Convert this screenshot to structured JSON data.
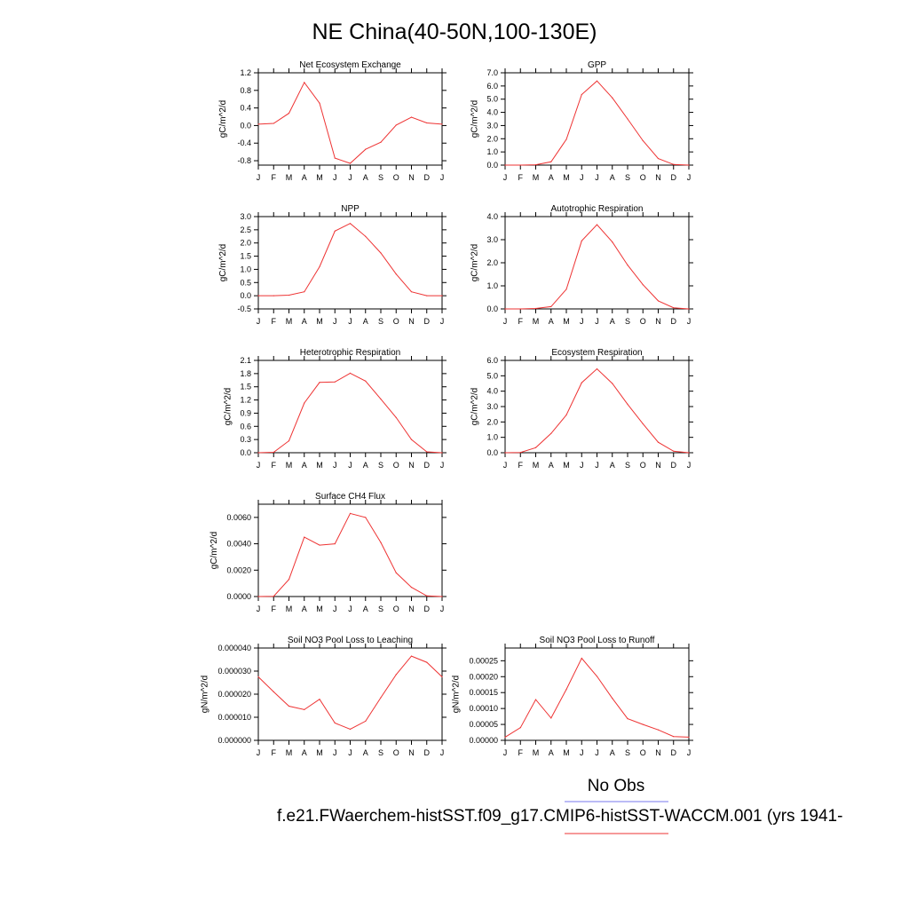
{
  "title": "NE China(40-50N,100-130E)",
  "months": [
    "J",
    "F",
    "M",
    "A",
    "M",
    "J",
    "J",
    "A",
    "S",
    "O",
    "N",
    "D",
    "J"
  ],
  "legend": {
    "obs_label": "No Obs",
    "obs_color": "#7777ee",
    "model_label": "f.e21.FWaerchem-histSST.f09_g17.CMIP6-histSST-WACCM.001 (yrs 1941-",
    "model_color": "#ee3333"
  },
  "chart_data": [
    {
      "type": "line",
      "title": "Net Ecosystem Exchange",
      "ylabel": "gC/m^2/d",
      "ylim": [
        -0.9,
        1.2
      ],
      "yticks": [
        "1.2",
        "0.8",
        "0.4",
        "0.0",
        "-0.4",
        "-0.8"
      ],
      "x": [
        "J",
        "F",
        "M",
        "A",
        "M",
        "J",
        "J",
        "A",
        "S",
        "O",
        "N",
        "D",
        "J"
      ],
      "series": [
        {
          "values": [
            0.03,
            0.05,
            0.28,
            0.98,
            0.51,
            -0.74,
            -0.86,
            -0.54,
            -0.38,
            0.01,
            0.19,
            0.06,
            0.03
          ]
        }
      ]
    },
    {
      "type": "line",
      "title": "GPP",
      "ylabel": "gC/m^2/d",
      "ylim": [
        0.0,
        7.0
      ],
      "yticks": [
        "7.0",
        "6.0",
        "5.0",
        "4.0",
        "3.0",
        "2.0",
        "1.0",
        "0.0"
      ],
      "x": [
        "J",
        "F",
        "M",
        "A",
        "M",
        "J",
        "J",
        "A",
        "S",
        "O",
        "N",
        "D",
        "J"
      ],
      "series": [
        {
          "values": [
            0.0,
            0.0,
            0.03,
            0.25,
            1.95,
            5.35,
            6.38,
            5.1,
            3.5,
            1.85,
            0.5,
            0.05,
            0.0
          ]
        }
      ]
    },
    {
      "type": "line",
      "title": "NPP",
      "ylabel": "gC/m^2/d",
      "ylim": [
        -0.5,
        3.0
      ],
      "yticks": [
        "3.0",
        "2.5",
        "2.0",
        "1.5",
        "1.0",
        "0.5",
        "0.0",
        "-0.5"
      ],
      "x": [
        "J",
        "F",
        "M",
        "A",
        "M",
        "J",
        "J",
        "A",
        "S",
        "O",
        "N",
        "D",
        "J"
      ],
      "series": [
        {
          "values": [
            0.0,
            0.0,
            0.02,
            0.15,
            1.1,
            2.45,
            2.74,
            2.25,
            1.62,
            0.82,
            0.15,
            0.0,
            0.0
          ]
        }
      ]
    },
    {
      "type": "line",
      "title": "Autotrophic Respiration",
      "ylabel": "gC/m^2/d",
      "ylim": [
        0.0,
        4.0
      ],
      "yticks": [
        "4.0",
        "3.0",
        "2.0",
        "1.0",
        "0.0"
      ],
      "x": [
        "J",
        "F",
        "M",
        "A",
        "M",
        "J",
        "J",
        "A",
        "S",
        "O",
        "N",
        "D",
        "J"
      ],
      "series": [
        {
          "values": [
            0.0,
            0.0,
            0.02,
            0.1,
            0.85,
            2.95,
            3.65,
            2.9,
            1.9,
            1.05,
            0.35,
            0.05,
            0.0
          ]
        }
      ]
    },
    {
      "type": "line",
      "title": "Heterotrophic Respiration",
      "ylabel": "gC/m^2/d",
      "ylim": [
        0.0,
        2.1
      ],
      "yticks": [
        "2.1",
        "1.8",
        "1.5",
        "1.2",
        "0.9",
        "0.6",
        "0.3",
        "0.0"
      ],
      "x": [
        "J",
        "F",
        "M",
        "A",
        "M",
        "J",
        "J",
        "A",
        "S",
        "O",
        "N",
        "D",
        "J"
      ],
      "series": [
        {
          "values": [
            0.0,
            0.01,
            0.27,
            1.13,
            1.6,
            1.61,
            1.81,
            1.63,
            1.22,
            0.8,
            0.3,
            0.02,
            0.0
          ]
        }
      ]
    },
    {
      "type": "line",
      "title": "Ecosystem Respiration",
      "ylabel": "gC/m^2/d",
      "ylim": [
        0.0,
        6.0
      ],
      "yticks": [
        "6.0",
        "5.0",
        "4.0",
        "3.0",
        "2.0",
        "1.0",
        "0.0"
      ],
      "x": [
        "J",
        "F",
        "M",
        "A",
        "M",
        "J",
        "J",
        "A",
        "S",
        "O",
        "N",
        "D",
        "J"
      ],
      "series": [
        {
          "values": [
            0.0,
            0.02,
            0.33,
            1.25,
            2.45,
            4.55,
            5.45,
            4.5,
            3.15,
            1.88,
            0.68,
            0.1,
            0.0
          ]
        }
      ]
    },
    {
      "type": "line",
      "title": "Surface CH4 Flux",
      "ylabel": "gC/m^2/d",
      "ylim": [
        0.0,
        0.007
      ],
      "yticks": [
        "0.0060",
        "0.0040",
        "0.0020",
        "0.0000"
      ],
      "ytickvals": [
        0.006,
        0.004,
        0.002,
        0.0
      ],
      "x": [
        "J",
        "F",
        "M",
        "A",
        "M",
        "J",
        "J",
        "A",
        "S",
        "O",
        "N",
        "D",
        "J"
      ],
      "series": [
        {
          "values": [
            0.0,
            2e-05,
            0.0013,
            0.0045,
            0.0039,
            0.004,
            0.0063,
            0.006,
            0.0041,
            0.0018,
            0.0007,
            5e-05,
            0.0
          ]
        }
      ]
    },
    {
      "type": "line",
      "title": "Soil NO3 Pool Loss to Leaching",
      "ylabel": "gN/m^2/d",
      "ylim": [
        0.0,
        4e-05
      ],
      "yticks": [
        "0.000040",
        "0.000030",
        "0.000020",
        "0.000010",
        "0.000000"
      ],
      "x": [
        "J",
        "F",
        "M",
        "A",
        "M",
        "J",
        "J",
        "A",
        "S",
        "O",
        "N",
        "D",
        "J"
      ],
      "series": [
        {
          "values": [
            2.75e-05,
            2.1e-05,
            1.48e-05,
            1.33e-05,
            1.78e-05,
            7.5e-06,
            4.8e-06,
            8.3e-06,
            1.85e-05,
            2.85e-05,
            3.65e-05,
            3.38e-05,
            2.75e-05
          ]
        }
      ]
    },
    {
      "type": "line",
      "title": "Soil NO3 Pool Loss to Runoff",
      "ylabel": "gN/m^2/d",
      "ylim": [
        0.0,
        0.00029
      ],
      "yticks": [
        "0.00025",
        "0.00020",
        "0.00015",
        "0.00010",
        "0.00005",
        "0.00000"
      ],
      "ytickvals": [
        0.00025,
        0.0002,
        0.00015,
        0.0001,
        5e-05,
        0.0
      ],
      "x": [
        "J",
        "F",
        "M",
        "A",
        "M",
        "J",
        "J",
        "A",
        "S",
        "O",
        "N",
        "D",
        "J"
      ],
      "series": [
        {
          "values": [
            1e-05,
            4e-05,
            0.000128,
            7e-05,
            0.00016,
            0.000258,
            0.000201,
            0.000132,
            6.8e-05,
            5e-05,
            3.3e-05,
            1.2e-05,
            1e-05
          ]
        }
      ]
    }
  ]
}
